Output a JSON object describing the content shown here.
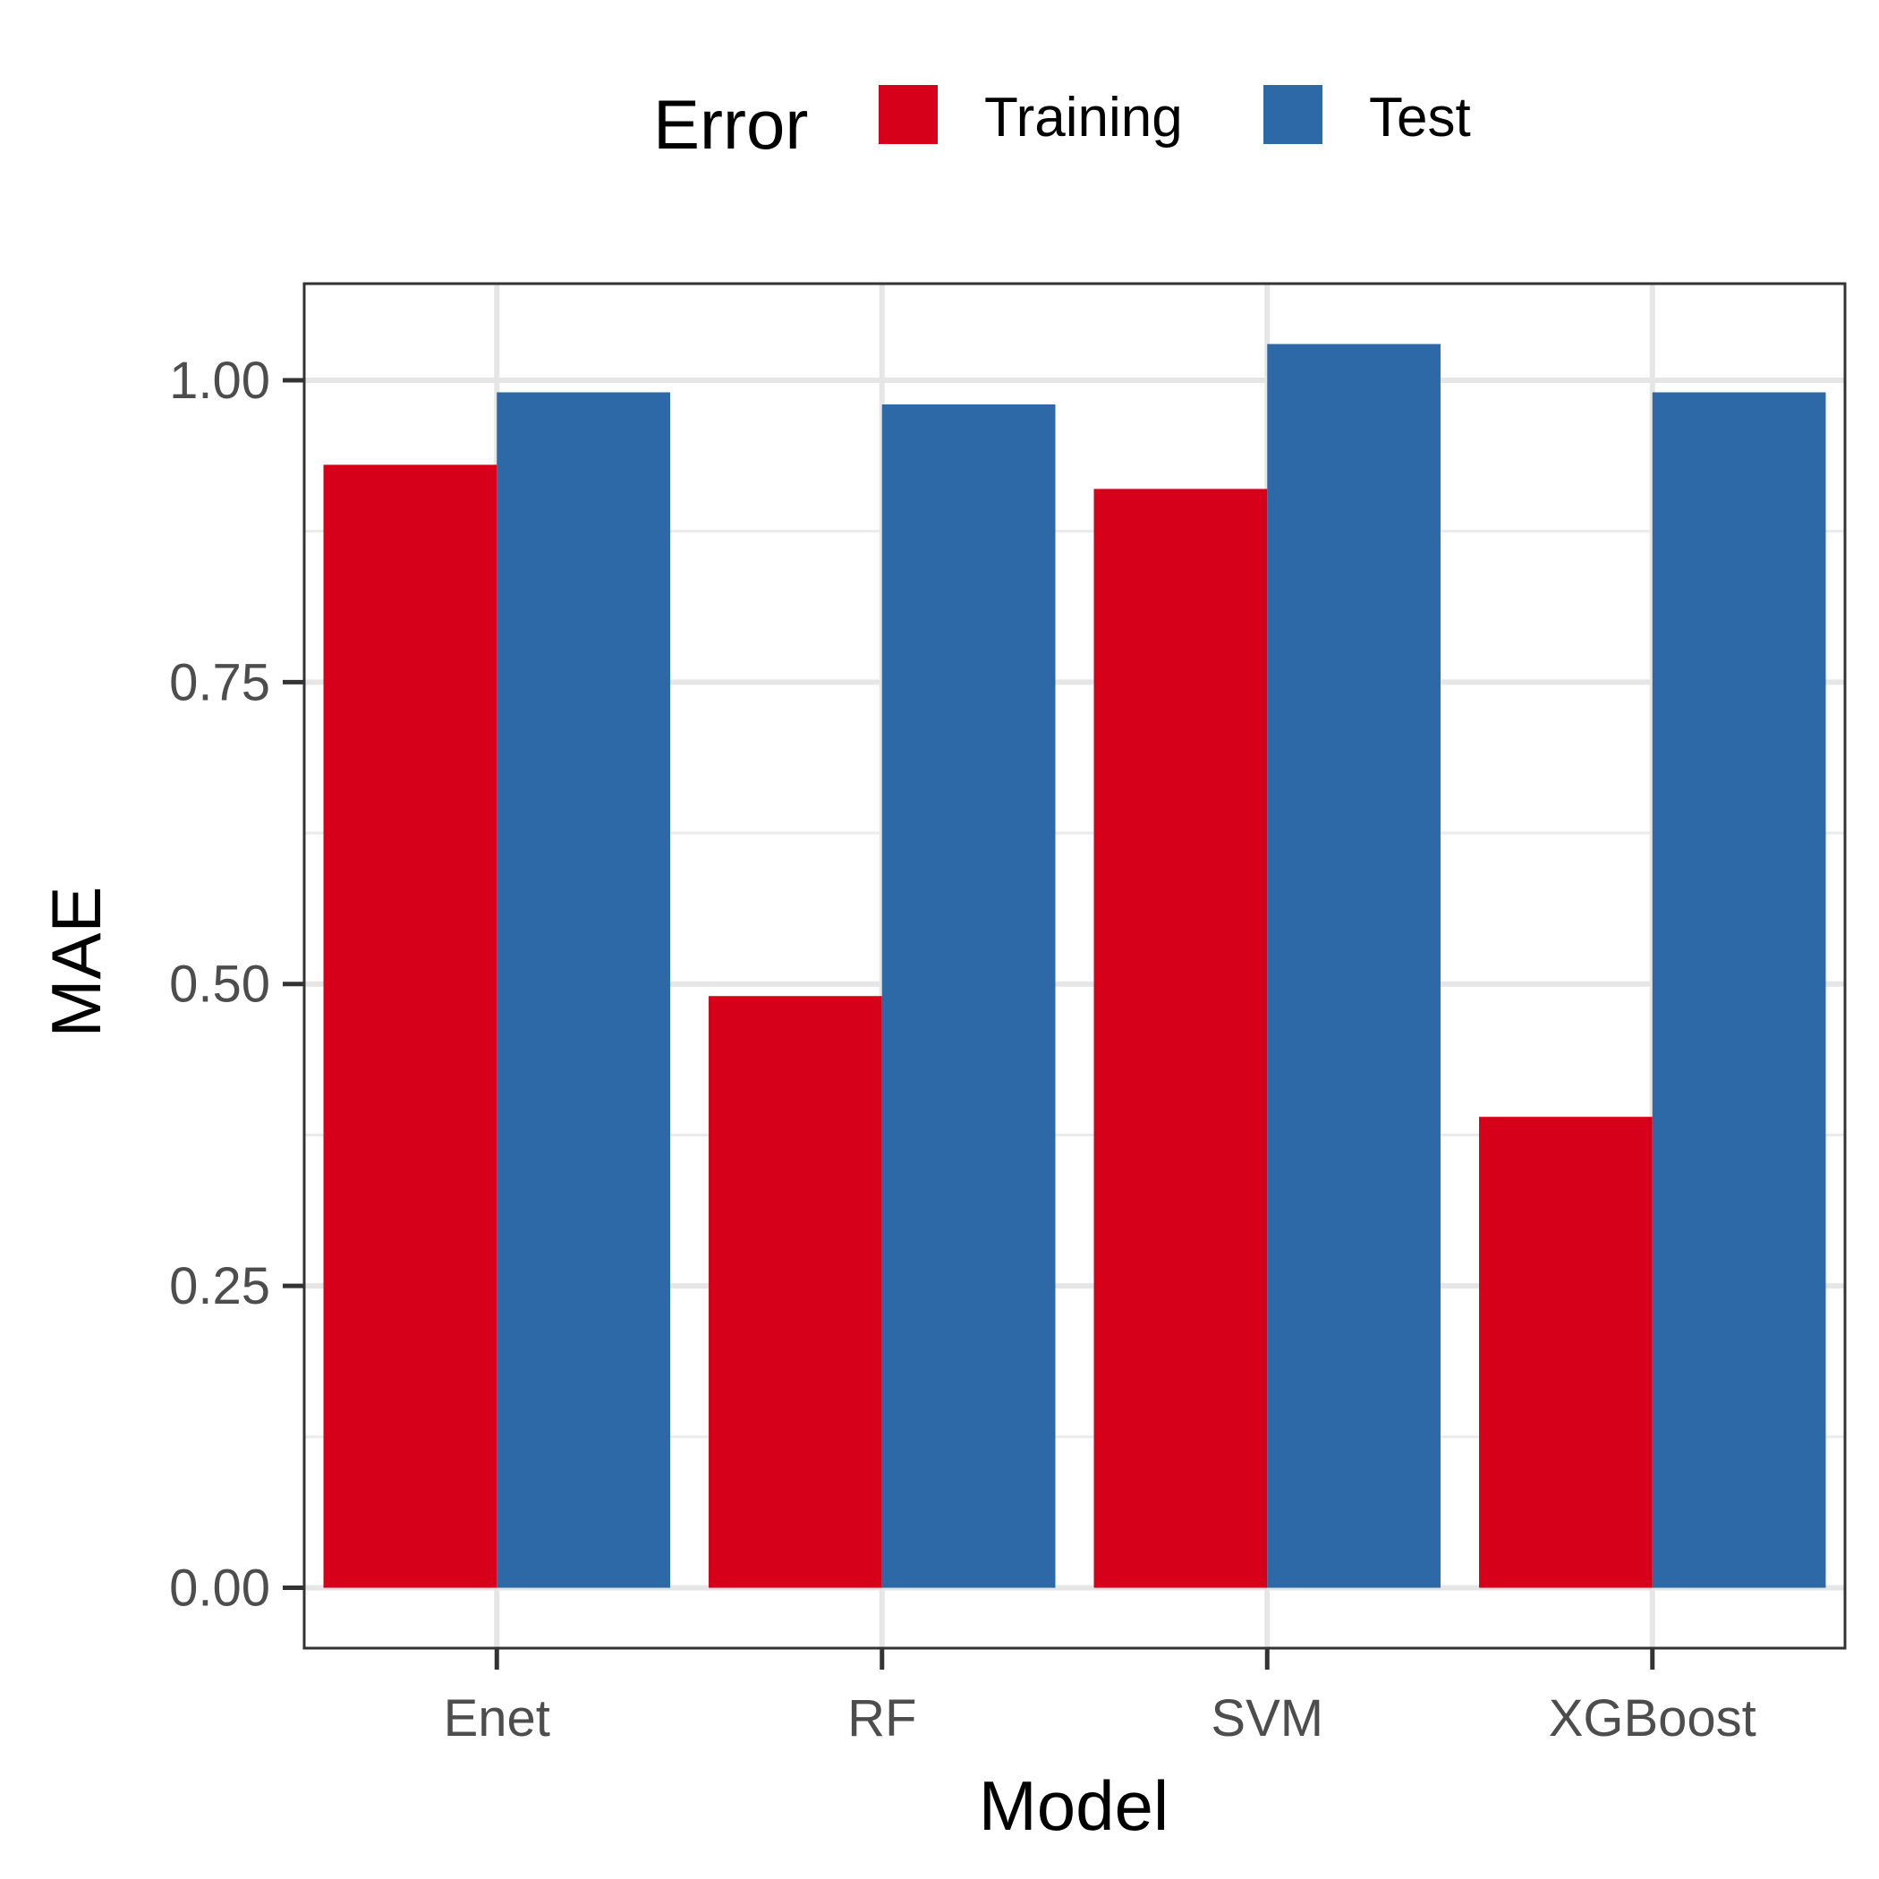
{
  "chart_data": {
    "type": "bar",
    "title": "",
    "xlabel": "Model",
    "ylabel": "MAE",
    "categories": [
      "Enet",
      "RF",
      "SVM",
      "XGBoost"
    ],
    "series": [
      {
        "name": "Training",
        "color": "#d7001a",
        "values": [
          0.93,
          0.49,
          0.91,
          0.39
        ]
      },
      {
        "name": "Test",
        "color": "#2d69a6",
        "values": [
          0.99,
          0.98,
          1.03,
          0.99
        ]
      }
    ],
    "yticks": [
      0.0,
      0.25,
      0.5,
      0.75,
      1.0
    ],
    "ytick_labels": [
      "0.00",
      "0.25",
      "0.50",
      "0.75",
      "1.00"
    ],
    "ylim": [
      -0.05,
      1.08
    ],
    "legend_title": "Error",
    "legend_position": "top",
    "grid": true
  }
}
